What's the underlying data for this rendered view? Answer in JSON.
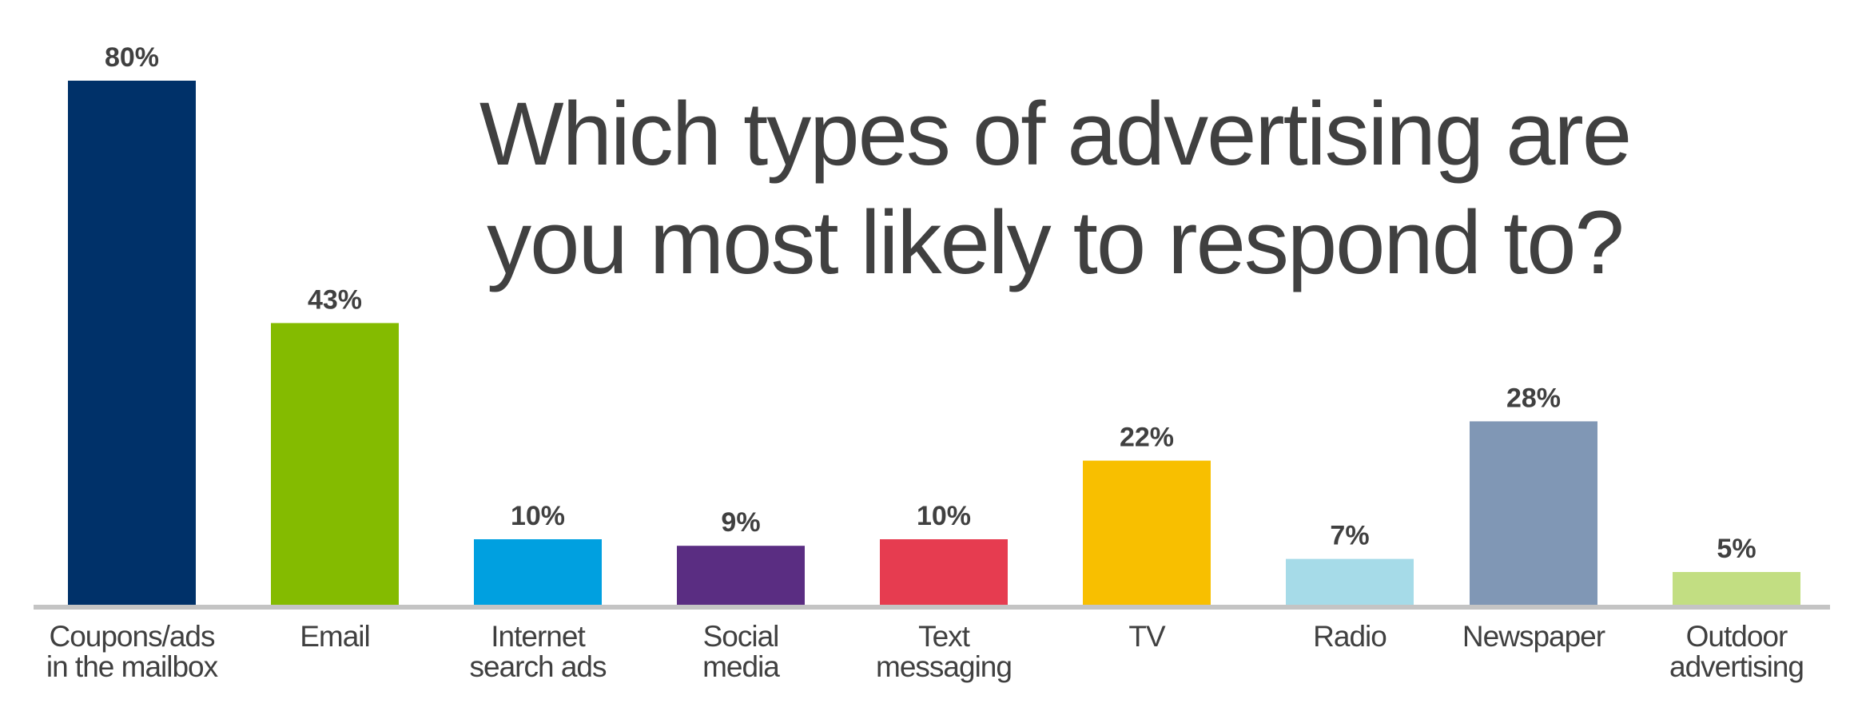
{
  "chart_data": {
    "type": "bar",
    "title": [
      "Which types of advertising are",
      "you most likely to respond to?"
    ],
    "xlabel": "",
    "ylabel": "",
    "ylim": [
      0,
      85
    ],
    "grid": false,
    "legend": "none",
    "categories": [
      [
        "Coupons/ads",
        "in the mailbox"
      ],
      [
        "Email"
      ],
      [
        "Internet",
        "search ads"
      ],
      [
        "Social",
        "media"
      ],
      [
        "Text",
        "messaging"
      ],
      [
        "TV"
      ],
      [
        "Radio"
      ],
      [
        "Newspaper"
      ],
      [
        "Outdoor",
        "advertising"
      ]
    ],
    "values": [
      80,
      43,
      10,
      9,
      10,
      22,
      7,
      28,
      5
    ],
    "data_labels": [
      "80%",
      "43%",
      "10%",
      "9%",
      "10%",
      "22%",
      "7%",
      "28%",
      "5%"
    ],
    "colors": [
      "#003169",
      "#84bb00",
      "#00a0e0",
      "#5a2d82",
      "#e63c50",
      "#f8bf00",
      "#a6dbe8",
      "#8097b5",
      "#c2de82"
    ],
    "axis_color": "#c4c4c4",
    "text_color": "#404040"
  }
}
